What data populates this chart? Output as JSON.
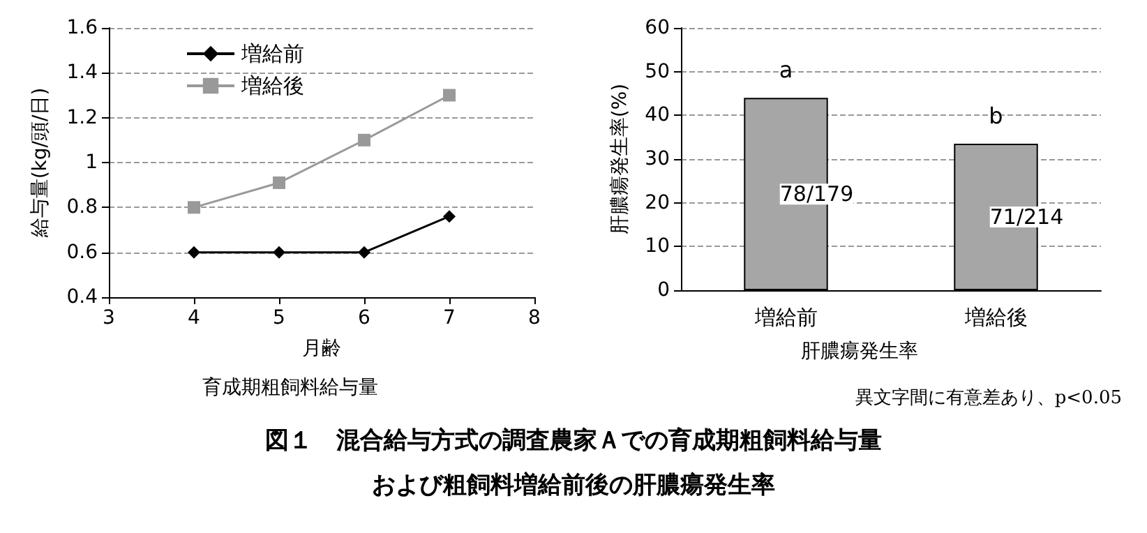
{
  "chart_data": [
    {
      "type": "line",
      "title": "育成期粗飼料給与量",
      "xlabel": "月齢",
      "ylabel": "給与量(kg/頭/日)",
      "x": [
        4,
        5,
        6,
        7
      ],
      "series": [
        {
          "name": "増給前",
          "color": "#000000",
          "marker": "diamond",
          "values": [
            0.6,
            0.6,
            0.6,
            0.76
          ]
        },
        {
          "name": "増給後",
          "color": "#999999",
          "marker": "square",
          "values": [
            0.8,
            0.91,
            1.1,
            1.3
          ]
        }
      ],
      "xlim": [
        3,
        8
      ],
      "xticks": [
        3,
        4,
        5,
        6,
        7,
        8
      ],
      "ylim": [
        0.4,
        1.6
      ],
      "yticks": [
        0.4,
        0.6,
        0.8,
        1,
        1.2,
        1.4,
        1.6
      ],
      "grid": "y",
      "legend": "top left"
    },
    {
      "type": "bar",
      "title": "肝膿瘍発生率",
      "ylabel": "肝膿瘍発生率(%)",
      "categories": [
        "増給前",
        "増給後"
      ],
      "values": [
        44,
        33.5
      ],
      "color": "#a6a6a6",
      "value_labels": [
        "78/179",
        "71/214"
      ],
      "ylim": [
        0,
        60
      ],
      "yticks": [
        0,
        10,
        20,
        30,
        40,
        50,
        60
      ],
      "grid": "y",
      "annotations": [
        {
          "text": "a",
          "x": "増給前",
          "y": 44
        },
        {
          "text": "b",
          "x": "増給後",
          "y": 33.5
        },
        "異文字間に有意差あり、p<0.05",
        "図１　混合給与方式の調査農家Ａでの育成期粗飼料給与量",
        "および粗飼料増給前後の肝膿瘍発生率"
      ]
    }
  ]
}
